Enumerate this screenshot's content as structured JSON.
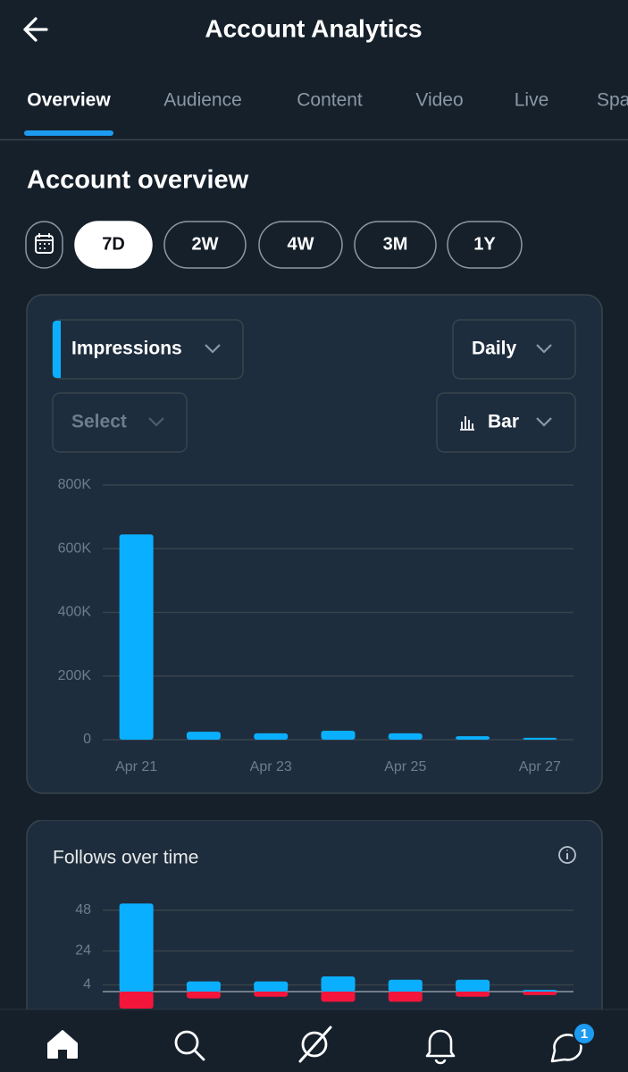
{
  "header": {
    "title": "Account Analytics"
  },
  "tabs": {
    "items": [
      "Overview",
      "Audience",
      "Content",
      "Video",
      "Live",
      "Spaces"
    ],
    "selected": 0
  },
  "section_title": "Account overview",
  "ranges": {
    "items": [
      "7D",
      "2W",
      "4W",
      "3M",
      "1Y"
    ],
    "selected": 0
  },
  "controls": {
    "metric": "Impressions",
    "interval": "Daily",
    "compare": "Select",
    "chart_kind": "Bar"
  },
  "chart_data": [
    {
      "type": "bar",
      "categories": [
        "Apr 21",
        null,
        "Apr 23",
        null,
        "Apr 25",
        null,
        "Apr 27"
      ],
      "values": [
        645000,
        25000,
        20000,
        28000,
        20000,
        11000,
        6000
      ],
      "color": "#0ab0ff",
      "ylim": [
        0,
        800000
      ],
      "yticks": [
        0,
        {
          "value": 200000,
          "label": "200K"
        },
        {
          "value": 400000,
          "label": "400K"
        },
        {
          "value": 600000,
          "label": "600K"
        },
        {
          "value": 800000,
          "label": "800K"
        }
      ],
      "grid": true
    },
    {
      "type": "bar",
      "title": "Follows over time",
      "series": [
        {
          "color": "#0ab0ff",
          "values": [
            52,
            6,
            6,
            9,
            7,
            7,
            1
          ]
        },
        {
          "color": "#f4153b",
          "values": [
            -10,
            -4,
            -3,
            -6,
            -6,
            -3,
            -2
          ]
        }
      ],
      "ylim": [
        -10,
        52
      ],
      "yticks": [
        4,
        24,
        48
      ],
      "grid": true
    }
  ],
  "nav": {
    "badge": 1
  }
}
